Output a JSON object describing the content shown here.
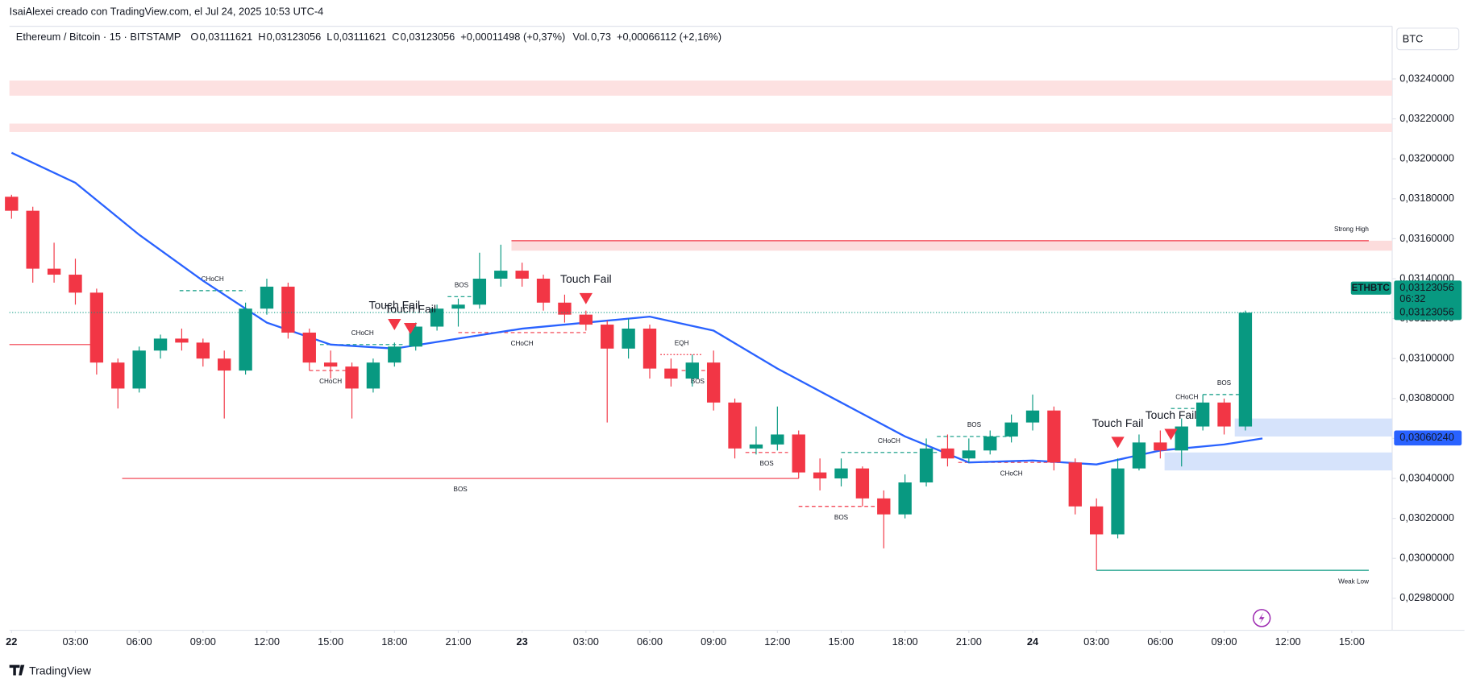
{
  "header": {
    "credit": "IsaiAlexei creado con TradingView.com, el Jul 24, 2025 10:53 UTC-4",
    "symbol": "Ethereum / Bitcoin · 15 · BITSTAMP",
    "ohlc": [
      {
        "key": "O",
        "value": "0,03111621"
      },
      {
        "key": "H",
        "value": "0,03123056"
      },
      {
        "key": "L",
        "value": "0,03111621"
      },
      {
        "key": "C",
        "value": "0,03123056"
      }
    ],
    "change": "+0,00011498 (+0,37%)",
    "vol_key": "Vol.",
    "vol": "0,73",
    "vol_change": "+0,00066112 (+2,16%)",
    "currency": "BTC"
  },
  "footer": {
    "brand": "TradingView"
  },
  "chart_data": {
    "type": "candlestick",
    "up_color": "#089981",
    "down_color": "#f23645",
    "x": [
      0,
      1,
      2,
      3,
      4,
      5,
      6,
      7,
      8,
      9,
      10,
      11,
      12,
      13,
      14,
      15,
      16,
      17,
      18,
      19,
      20,
      21,
      22,
      23,
      24,
      25,
      26,
      27,
      28,
      29,
      30,
      31,
      32,
      33,
      34,
      35,
      36,
      37,
      38,
      39,
      40,
      41,
      42,
      43,
      44,
      45,
      46,
      47,
      48,
      49,
      50,
      51,
      52,
      53,
      54,
      55,
      56,
      57,
      58
    ],
    "open": [
      0.03181,
      0.03174,
      0.03145,
      0.03142,
      0.03133,
      0.03098,
      0.03085,
      0.03104,
      0.0311,
      0.03108,
      0.031,
      0.03094,
      0.03125,
      0.03136,
      0.03113,
      0.03098,
      0.03096,
      0.03085,
      0.03098,
      0.03106,
      0.03116,
      0.03125,
      0.03127,
      0.0314,
      0.03144,
      0.0314,
      0.03128,
      0.03122,
      0.03117,
      0.03105,
      0.03115,
      0.03095,
      0.0309,
      0.03098,
      0.03078,
      0.03055,
      0.03057,
      0.03062,
      0.03043,
      0.0304,
      0.03045,
      0.0303,
      0.03022,
      0.03038,
      0.03055,
      0.0305,
      0.03054,
      0.03061,
      0.03068,
      0.03074,
      0.03048,
      0.03026,
      0.03012,
      0.03045,
      0.03058,
      0.03054,
      0.03066,
      0.03078,
      0.03066
    ],
    "high": [
      0.03182,
      0.03176,
      0.03158,
      0.0315,
      0.03135,
      0.031,
      0.03106,
      0.03112,
      0.03115,
      0.0311,
      0.03104,
      0.03128,
      0.0314,
      0.03138,
      0.03115,
      0.03104,
      0.03098,
      0.031,
      0.03108,
      0.03118,
      0.03127,
      0.0313,
      0.03153,
      0.03157,
      0.03148,
      0.03142,
      0.03132,
      0.03124,
      0.03119,
      0.0312,
      0.03117,
      0.031,
      0.03102,
      0.03104,
      0.0308,
      0.03066,
      0.03076,
      0.03064,
      0.0305,
      0.0305,
      0.03046,
      0.03034,
      0.03042,
      0.0306,
      0.03062,
      0.0306,
      0.03064,
      0.03072,
      0.03082,
      0.03076,
      0.0305,
      0.0303,
      0.0305,
      0.03062,
      0.03064,
      0.0307,
      0.03082,
      0.0308,
      0.03124
    ],
    "low": [
      0.0317,
      0.03138,
      0.03138,
      0.03127,
      0.03092,
      0.03075,
      0.03083,
      0.031,
      0.03104,
      0.03096,
      0.0307,
      0.03092,
      0.03122,
      0.0311,
      0.03094,
      0.0309,
      0.0307,
      0.03083,
      0.03096,
      0.03104,
      0.03114,
      0.03116,
      0.03125,
      0.03136,
      0.03136,
      0.03124,
      0.03118,
      0.03114,
      0.03068,
      0.031,
      0.0309,
      0.03086,
      0.03086,
      0.03074,
      0.0305,
      0.03052,
      0.03054,
      0.0304,
      0.03034,
      0.03036,
      0.03026,
      0.03005,
      0.0302,
      0.03036,
      0.03046,
      0.03048,
      0.03052,
      0.03058,
      0.03064,
      0.03044,
      0.03022,
      0.02994,
      0.0301,
      0.03044,
      0.0305,
      0.03046,
      0.03064,
      0.03062,
      0.03064
    ],
    "close": [
      0.03174,
      0.03145,
      0.03142,
      0.03133,
      0.03098,
      0.03085,
      0.03104,
      0.0311,
      0.03108,
      0.031,
      0.03094,
      0.03125,
      0.03136,
      0.03113,
      0.03098,
      0.03096,
      0.03085,
      0.03098,
      0.03106,
      0.03116,
      0.03125,
      0.03127,
      0.0314,
      0.03144,
      0.0314,
      0.03128,
      0.03122,
      0.03117,
      0.03105,
      0.03115,
      0.03095,
      0.0309,
      0.03098,
      0.03078,
      0.03055,
      0.03057,
      0.03062,
      0.03043,
      0.0304,
      0.03045,
      0.0303,
      0.03022,
      0.03038,
      0.03055,
      0.0305,
      0.03054,
      0.03061,
      0.03068,
      0.03074,
      0.03048,
      0.03026,
      0.03012,
      0.03045,
      0.03058,
      0.03054,
      0.03066,
      0.03078,
      0.03066,
      0.03123
    ],
    "ma": {
      "color": "#2962ff",
      "x": [
        0,
        3,
        6,
        9,
        12,
        15,
        18,
        21,
        24,
        27,
        30,
        33,
        36,
        39,
        42,
        45,
        48,
        51,
        54,
        57,
        58.8
      ],
      "values": [
        0.03203,
        0.03188,
        0.03162,
        0.03139,
        0.03118,
        0.03107,
        0.03105,
        0.0311,
        0.03115,
        0.03118,
        0.03121,
        0.03114,
        0.03095,
        0.03078,
        0.03061,
        0.03048,
        0.03049,
        0.03047,
        0.03054,
        0.03057,
        0.0306
      ]
    },
    "zones": [
      {
        "x": [
          -0.1,
          64.9
        ],
        "top": 0.032392,
        "bottom": 0.032316,
        "color": "#fde1e1"
      },
      {
        "x": [
          -0.1,
          64.9
        ],
        "top": 0.032176,
        "bottom": 0.032134,
        "color": "#fde1e1"
      },
      {
        "x": [
          23.5,
          64.9
        ],
        "top": 0.03159,
        "bottom": 0.03154,
        "color": "#fcdcdc"
      },
      {
        "x": [
          57.5,
          64.9
        ],
        "top": 0.0307,
        "bottom": 0.03061,
        "color": "#d6e3fb"
      },
      {
        "x": [
          54.2,
          64.9
        ],
        "top": 0.03053,
        "bottom": 0.03044,
        "color": "#d6e3fb"
      }
    ],
    "structures": [
      {
        "x": [
          -0.1,
          4
        ],
        "level": 0.03107,
        "color": "#f23645",
        "style": "solid"
      },
      {
        "label": "BOS",
        "x": [
          5.2,
          37
        ],
        "level": 0.0304,
        "color": "#f23645",
        "style": "solid",
        "side": "below"
      },
      {
        "label": "CHoCH",
        "x": [
          7.9,
          11
        ],
        "level": 0.03134,
        "color": "#089981",
        "style": "dashed",
        "side": "above"
      },
      {
        "label": "CHoCH",
        "x": [
          14.5,
          18.5
        ],
        "level": 0.03107,
        "color": "#089981",
        "style": "dashed",
        "side": "above"
      },
      {
        "label": "CHoCH",
        "x": [
          14,
          16
        ],
        "level": 0.03094,
        "color": "#f23645",
        "style": "dashed",
        "side": "below"
      },
      {
        "label": "BOS",
        "x": [
          20.5,
          21.8
        ],
        "level": 0.03131,
        "color": "#089981",
        "style": "dashed",
        "side": "above"
      },
      {
        "label": "CHoCH",
        "x": [
          21,
          27
        ],
        "level": 0.03113,
        "color": "#f23645",
        "style": "dashed",
        "side": "below"
      },
      {
        "label": "EQH",
        "x": [
          30.5,
          32.5
        ],
        "level": 0.03102,
        "color": "#f23645",
        "style": "dotted",
        "side": "above"
      },
      {
        "label": "BOS",
        "x": [
          31.5,
          33
        ],
        "level": 0.03094,
        "color": "#f23645",
        "style": "dashed",
        "side": "below"
      },
      {
        "label": "BOS",
        "x": [
          34.5,
          36.5
        ],
        "level": 0.03053,
        "color": "#f23645",
        "style": "dashed",
        "side": "below"
      },
      {
        "label": "BOS",
        "x": [
          37,
          41
        ],
        "level": 0.03026,
        "color": "#f23645",
        "style": "dashed",
        "side": "below"
      },
      {
        "label": "CHoCH",
        "x": [
          39,
          43.5
        ],
        "level": 0.03053,
        "color": "#089981",
        "style": "dashed",
        "side": "above"
      },
      {
        "label": "BOS",
        "x": [
          43.5,
          47
        ],
        "level": 0.03061,
        "color": "#089981",
        "style": "dashed",
        "side": "above"
      },
      {
        "label": "CHoCH",
        "x": [
          44.5,
          49.5
        ],
        "level": 0.03048,
        "color": "#f23645",
        "style": "dashed",
        "side": "below"
      },
      {
        "label": "CHoCH",
        "x": [
          54.5,
          56
        ],
        "level": 0.03075,
        "color": "#089981",
        "style": "dashed",
        "side": "above"
      },
      {
        "label": "BOS",
        "x": [
          56,
          58
        ],
        "level": 0.03082,
        "color": "#089981",
        "style": "dashed",
        "side": "above"
      },
      {
        "label": "Strong High",
        "x": [
          23.5,
          63.8
        ],
        "level": 0.03159,
        "color": "#f23645",
        "style": "solid",
        "side": "above",
        "anchor": "end"
      },
      {
        "label": "Weak Low",
        "x": [
          51,
          63.8
        ],
        "level": 0.02994,
        "color": "#089981",
        "style": "solid",
        "side": "below",
        "anchor": "end"
      }
    ],
    "touch_fails": [
      {
        "label": "Touch Fail",
        "x": 18,
        "y": 0.03117
      },
      {
        "label": "Touch Fail",
        "x": 18.75,
        "y": 0.03115
      },
      {
        "label": "Touch Fail",
        "x": 27,
        "y": 0.0313
      },
      {
        "label": "Touch Fail",
        "x": 52,
        "y": 0.03058
      },
      {
        "label": "Touch Fail",
        "x": 54.5,
        "y": 0.03062
      }
    ],
    "marker_color": "#f23645",
    "last_price": {
      "value": 0.03123056,
      "label": "0,03123056"
    },
    "symbol_tag": "ETHBTC",
    "countdown": "06:32",
    "ma_last": {
      "value": 0.0306024,
      "label": "0,03060240"
    },
    "xlim": [
      -0.1,
      64.9
    ],
    "ylim": [
      0.02964,
      0.03264
    ],
    "xticks": [
      {
        "value": 0,
        "label": "22"
      },
      {
        "value": 3,
        "label": "03:00"
      },
      {
        "value": 6,
        "label": "06:00"
      },
      {
        "value": 9,
        "label": "09:00"
      },
      {
        "value": 12,
        "label": "12:00"
      },
      {
        "value": 15,
        "label": "15:00"
      },
      {
        "value": 18,
        "label": "18:00"
      },
      {
        "value": 21,
        "label": "21:00"
      },
      {
        "value": 24,
        "label": "23"
      },
      {
        "value": 27,
        "label": "03:00"
      },
      {
        "value": 30,
        "label": "06:00"
      },
      {
        "value": 33,
        "label": "09:00"
      },
      {
        "value": 36,
        "label": "12:00"
      },
      {
        "value": 39,
        "label": "15:00"
      },
      {
        "value": 42,
        "label": "18:00"
      },
      {
        "value": 45,
        "label": "21:00"
      },
      {
        "value": 48,
        "label": "24"
      },
      {
        "value": 51,
        "label": "03:00"
      },
      {
        "value": 54,
        "label": "06:00"
      },
      {
        "value": 57,
        "label": "09:00"
      },
      {
        "value": 60,
        "label": "12:00"
      },
      {
        "value": 63,
        "label": "15:00"
      }
    ],
    "yticks": [
      {
        "value": 0.0298,
        "label": "0,02980000"
      },
      {
        "value": 0.03,
        "label": "0,03000000"
      },
      {
        "value": 0.0302,
        "label": "0,03020000"
      },
      {
        "value": 0.0304,
        "label": "0,03040000"
      },
      {
        "value": 0.0306,
        "label": "0,03060000"
      },
      {
        "value": 0.0308,
        "label": "0,03080000"
      },
      {
        "value": 0.031,
        "label": "0,03100000"
      },
      {
        "value": 0.0312,
        "label": "0,03120000"
      },
      {
        "value": 0.0314,
        "label": "0,03140000"
      },
      {
        "value": 0.0316,
        "label": "0,03160000"
      },
      {
        "value": 0.0318,
        "label": "0,03180000"
      },
      {
        "value": 0.032,
        "label": "0,03200000"
      },
      {
        "value": 0.0322,
        "label": "0,03220000"
      },
      {
        "value": 0.0324,
        "label": "0,03240000"
      }
    ],
    "grid": false
  }
}
